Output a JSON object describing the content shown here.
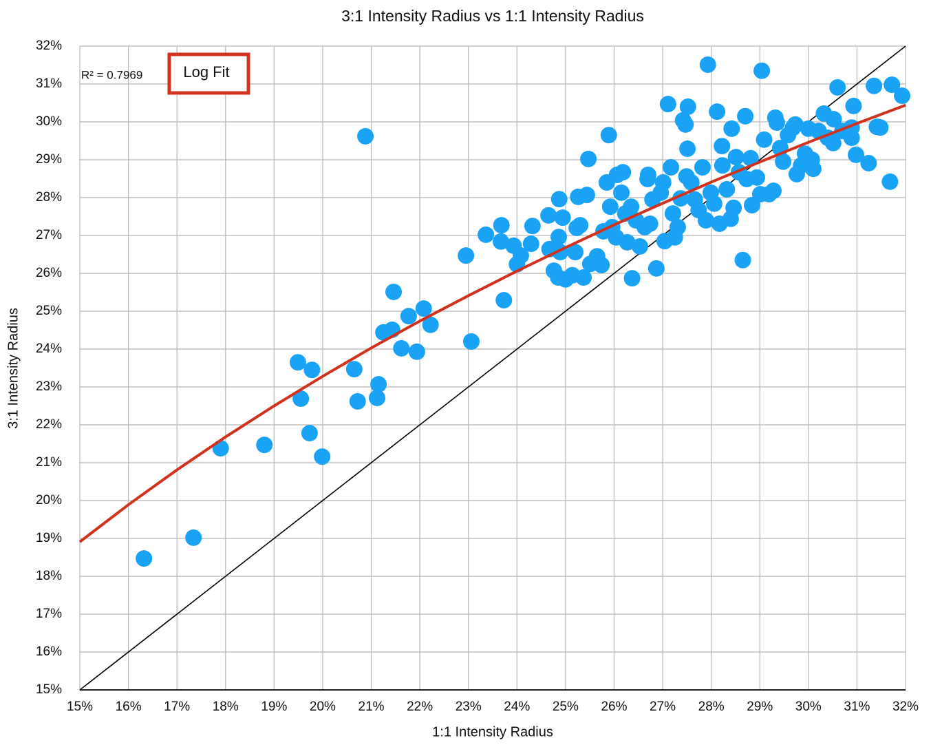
{
  "chart_data": {
    "type": "scatter",
    "title": "3:1 Intensity Radius vs 1:1 Intensity Radius",
    "x_label": "1:1 Intensity Radius",
    "y_label": "3:1 Intensity Radius",
    "r_squared": "R² = 0.7969",
    "fit_label": "Log Fit",
    "grid": true,
    "xlim": [
      15,
      32
    ],
    "ylim": [
      15,
      32
    ],
    "xticks": [
      {
        "value": 15,
        "label": "15%"
      },
      {
        "value": 16,
        "label": "16%"
      },
      {
        "value": 17,
        "label": "17%"
      },
      {
        "value": 18,
        "label": "18%"
      },
      {
        "value": 19,
        "label": "19%"
      },
      {
        "value": 20,
        "label": "20%"
      },
      {
        "value": 21,
        "label": "21%"
      },
      {
        "value": 22,
        "label": "22%"
      },
      {
        "value": 23,
        "label": "23%"
      },
      {
        "value": 24,
        "label": "24%"
      },
      {
        "value": 25,
        "label": "25%"
      },
      {
        "value": 26,
        "label": "26%"
      },
      {
        "value": 27,
        "label": "27%"
      },
      {
        "value": 28,
        "label": "28%"
      },
      {
        "value": 29,
        "label": "29%"
      },
      {
        "value": 30,
        "label": "30%"
      },
      {
        "value": 31,
        "label": "31%"
      },
      {
        "value": 32,
        "label": "32%"
      }
    ],
    "yticks": [
      {
        "value": 15,
        "label": "15%"
      },
      {
        "value": 16,
        "label": "16%"
      },
      {
        "value": 17,
        "label": "17%"
      },
      {
        "value": 18,
        "label": "18%"
      },
      {
        "value": 19,
        "label": "19%"
      },
      {
        "value": 20,
        "label": "20%"
      },
      {
        "value": 21,
        "label": "21%"
      },
      {
        "value": 22,
        "label": "22%"
      },
      {
        "value": 23,
        "label": "23%"
      },
      {
        "value": 24,
        "label": "24%"
      },
      {
        "value": 25,
        "label": "25%"
      },
      {
        "value": 26,
        "label": "26%"
      },
      {
        "value": 27,
        "label": "27%"
      },
      {
        "value": 28,
        "label": "28%"
      },
      {
        "value": 29,
        "label": "29%"
      },
      {
        "value": 30,
        "label": "30%"
      },
      {
        "value": 31,
        "label": "31%"
      },
      {
        "value": 32,
        "label": "32%"
      }
    ],
    "series": [
      {
        "color": "#1aa3f5",
        "x": [
          16.32,
          17.34,
          17.9,
          18.8,
          19.49,
          19.78,
          19.55,
          19.73,
          19.99,
          20.65,
          20.72,
          20.88,
          21.15,
          21.12,
          21.25,
          21.46,
          21.43,
          21.62,
          21.77,
          21.94,
          22.08,
          22.22,
          22.95,
          23.06,
          23.36,
          23.68,
          23.73,
          23.67,
          23.93,
          24.0,
          24.08,
          24.32,
          24.29,
          24.65,
          24.67,
          24.76,
          24.87,
          24.94,
          24.86,
          24.89,
          24.85,
          25.0,
          25.14,
          25.2,
          25.23,
          25.3,
          25.26,
          25.47,
          25.44,
          25.37,
          25.51,
          25.65,
          25.74,
          25.78,
          25.85,
          25.89,
          25.92,
          25.96,
          26.04,
          26.06,
          26.18,
          26.15,
          26.23,
          26.27,
          26.35,
          26.37,
          26.45,
          26.53,
          26.63,
          26.69,
          26.7,
          26.74,
          26.79,
          26.87,
          26.96,
          27.01,
          27.04,
          27.11,
          27.17,
          27.21,
          27.25,
          27.31,
          27.37,
          27.42,
          27.47,
          27.51,
          27.52,
          27.49,
          27.59,
          27.66,
          27.74,
          27.82,
          27.89,
          27.93,
          27.99,
          28.06,
          28.12,
          28.17,
          28.22,
          28.23,
          28.32,
          28.4,
          28.42,
          28.46,
          28.51,
          28.57,
          28.65,
          28.7,
          28.73,
          28.81,
          28.84,
          28.94,
          29.04,
          29.01,
          29.09,
          29.19,
          29.28,
          29.32,
          29.35,
          29.42,
          29.48,
          29.58,
          29.68,
          29.73,
          29.76,
          29.85,
          29.93,
          30.0,
          30.1,
          30.07,
          30.21,
          30.32,
          30.4,
          30.51,
          30.52,
          30.6,
          30.7,
          30.89,
          30.93,
          30.89,
          30.98,
          31.24,
          31.35,
          31.41,
          31.48,
          31.68,
          31.72,
          31.93
        ],
        "values": [
          18.47,
          19.02,
          21.38,
          21.47,
          23.65,
          23.45,
          22.69,
          21.78,
          21.16,
          23.47,
          22.62,
          29.62,
          23.07,
          22.71,
          24.44,
          25.51,
          24.51,
          24.02,
          24.87,
          23.93,
          25.07,
          24.64,
          26.47,
          24.2,
          27.02,
          27.27,
          25.29,
          26.84,
          26.73,
          26.24,
          26.47,
          27.25,
          26.78,
          27.53,
          26.64,
          26.07,
          27.96,
          27.47,
          26.96,
          26.56,
          25.89,
          25.84,
          25.95,
          26.56,
          27.2,
          27.27,
          28.02,
          29.02,
          28.07,
          25.89,
          26.25,
          26.45,
          26.22,
          27.11,
          28.4,
          29.65,
          27.76,
          27.22,
          26.95,
          28.6,
          28.67,
          28.13,
          27.58,
          26.82,
          27.76,
          25.87,
          27.4,
          26.71,
          27.22,
          28.49,
          28.6,
          27.31,
          27.95,
          26.13,
          28.13,
          28.4,
          26.85,
          30.47,
          28.8,
          27.58,
          26.95,
          27.22,
          27.98,
          30.04,
          29.93,
          29.29,
          30.4,
          28.56,
          28.4,
          27.95,
          27.67,
          28.8,
          27.4,
          31.51,
          28.13,
          27.84,
          30.27,
          27.31,
          29.36,
          28.85,
          28.22,
          27.44,
          29.82,
          27.73,
          29.07,
          28.67,
          26.35,
          30.15,
          28.49,
          29.04,
          27.8,
          28.53,
          31.35,
          28.09,
          29.53,
          28.09,
          28.18,
          30.11,
          29.98,
          29.31,
          28.95,
          29.65,
          29.84,
          29.93,
          28.62,
          28.85,
          29.16,
          29.82,
          28.76,
          29.0,
          29.76,
          30.22,
          29.58,
          29.44,
          30.07,
          30.91,
          29.76,
          29.85,
          30.42,
          29.58,
          29.13,
          28.91,
          30.95,
          29.87,
          29.85,
          28.42,
          30.98,
          30.69
        ]
      }
    ],
    "reference_line": {
      "color": "#000000",
      "x": [
        15,
        32
      ],
      "values": [
        15,
        32
      ]
    },
    "trendline": {
      "color": "#d0321e",
      "x": [
        15,
        16,
        17,
        18,
        19,
        20,
        21,
        22,
        23,
        24,
        25,
        26,
        27,
        28,
        29,
        30,
        31,
        32
      ],
      "values": [
        18.91,
        19.89,
        20.81,
        21.68,
        22.5,
        23.28,
        24.03,
        24.74,
        25.41,
        26.06,
        26.68,
        27.28,
        27.85,
        28.41,
        28.94,
        29.46,
        29.96,
        30.44
      ]
    }
  }
}
